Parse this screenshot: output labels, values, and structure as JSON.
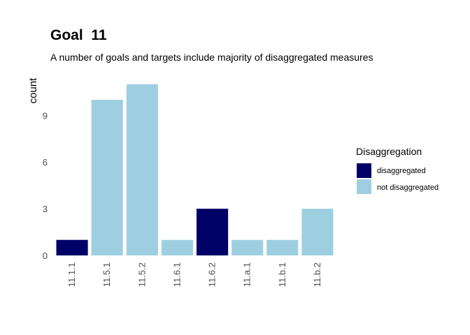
{
  "chart_data": {
    "type": "bar",
    "title": "Goal  11",
    "subtitle": "A number of goals and targets include majority of disaggregated measures",
    "xlabel": "",
    "ylabel": "count",
    "categories": [
      "11.1.1",
      "11.5.1",
      "11.5.2",
      "11.6.1",
      "11.6.2",
      "11.a.1",
      "11.b.1",
      "11.b.2"
    ],
    "values": [
      1,
      10,
      11,
      1,
      3,
      1,
      1,
      3
    ],
    "groups": [
      "disaggregated",
      "not disaggregated",
      "not disaggregated",
      "not disaggregated",
      "disaggregated",
      "not disaggregated",
      "not disaggregated",
      "not disaggregated"
    ],
    "yticks": [
      "0",
      "3",
      "6",
      "9"
    ],
    "ylim": [
      0,
      11
    ],
    "grid": false,
    "legend": {
      "title": "Disaggregation",
      "position": "right",
      "items": [
        {
          "label": "disaggregated",
          "color": "#000066"
        },
        {
          "label": "not disaggregated",
          "color": "#9ecfe0"
        }
      ]
    }
  }
}
